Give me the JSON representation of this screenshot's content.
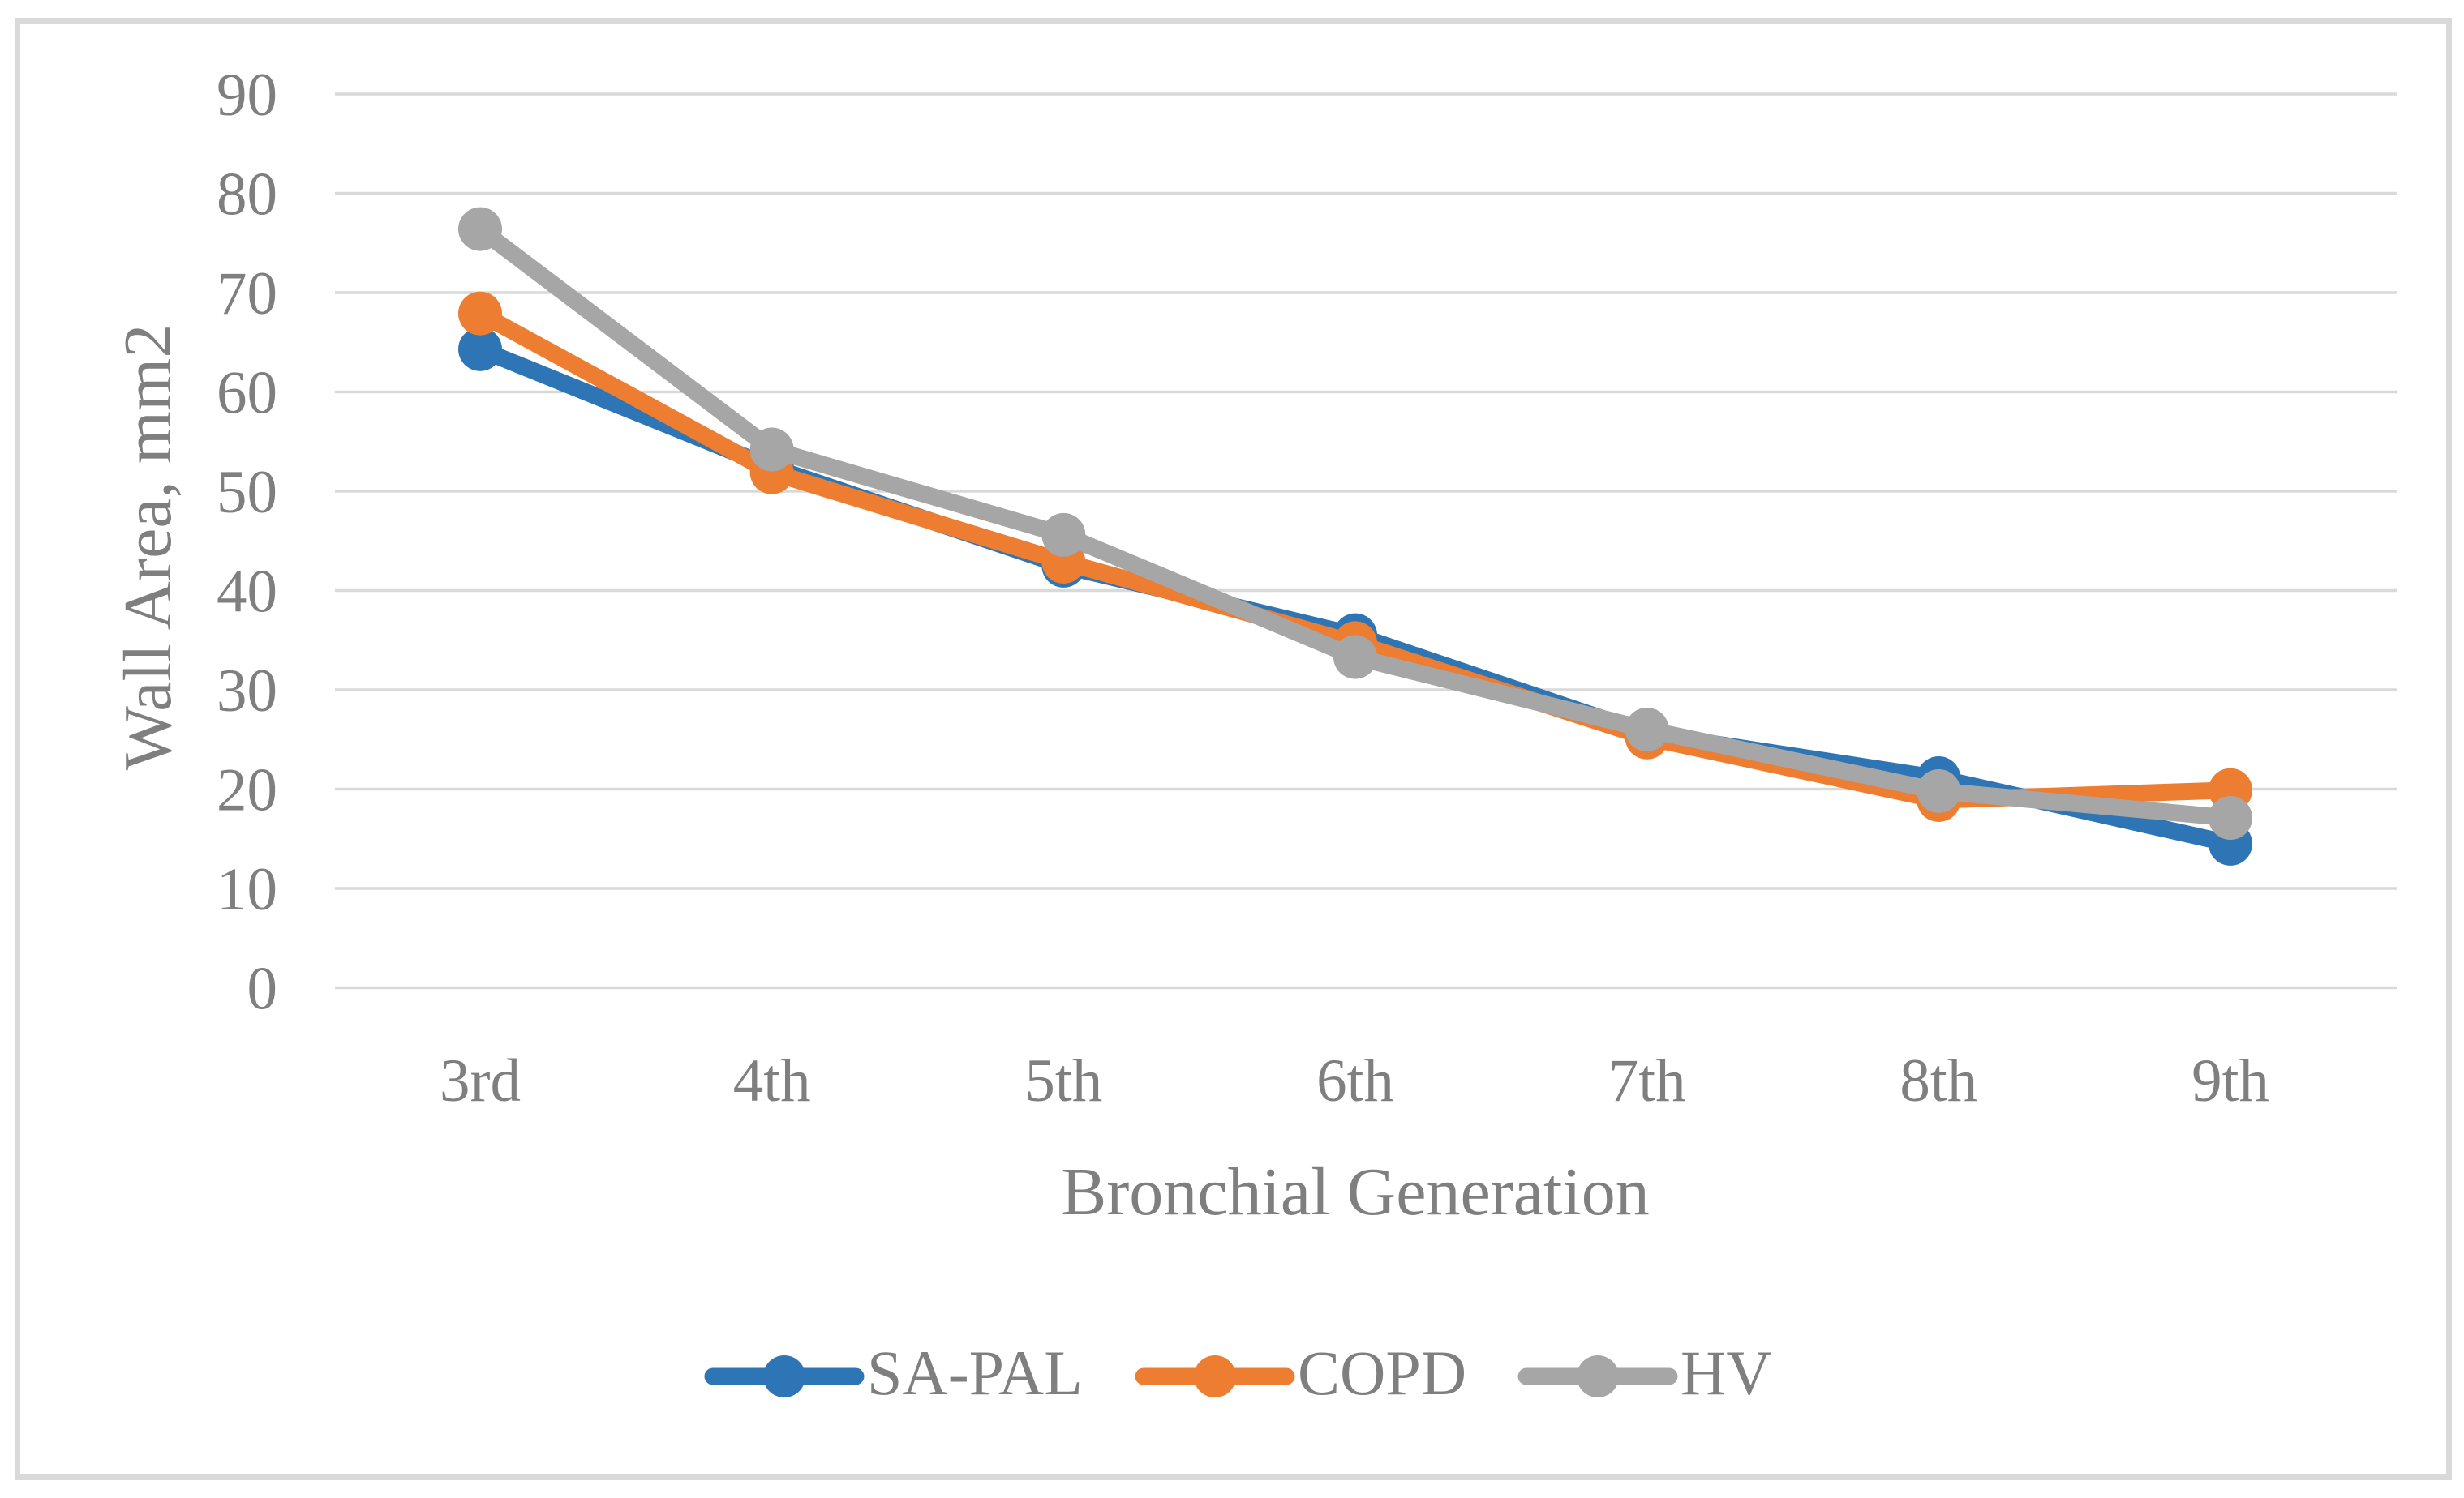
{
  "figure": {
    "background_color": "#FFFFFF",
    "border_color": "#D9D9D9",
    "text_color": "#7F7F7F",
    "gridline_color": "#D9D9D9"
  },
  "chart_data": {
    "type": "line",
    "title": "",
    "xlabel": "Bronchial Generation",
    "ylabel": "Wall Area, mm2",
    "categories": [
      "3rd",
      "4th",
      "5th",
      "6th",
      "7th",
      "8th",
      "9th"
    ],
    "series": [
      {
        "name": "SA-PAL",
        "color": "#2E75B6",
        "values": [
          64.3,
          52.4,
          42.5,
          35.5,
          25.6,
          21.1,
          14.5
        ]
      },
      {
        "name": "COPD",
        "color": "#ED7D31",
        "values": [
          67.9,
          51.9,
          42.9,
          34.7,
          25.2,
          18.9,
          19.9
        ]
      },
      {
        "name": "HV",
        "color": "#A6A6A6",
        "values": [
          76.4,
          54.2,
          45.6,
          33.3,
          26.0,
          19.8,
          17.1
        ]
      }
    ],
    "ylim": [
      0,
      90
    ],
    "ytick_step": 10,
    "ytick_labels": [
      "0",
      "10",
      "20",
      "30",
      "40",
      "50",
      "60",
      "70",
      "80",
      "90"
    ],
    "grid": true,
    "legend_position": "bottom",
    "marker": "circle"
  }
}
